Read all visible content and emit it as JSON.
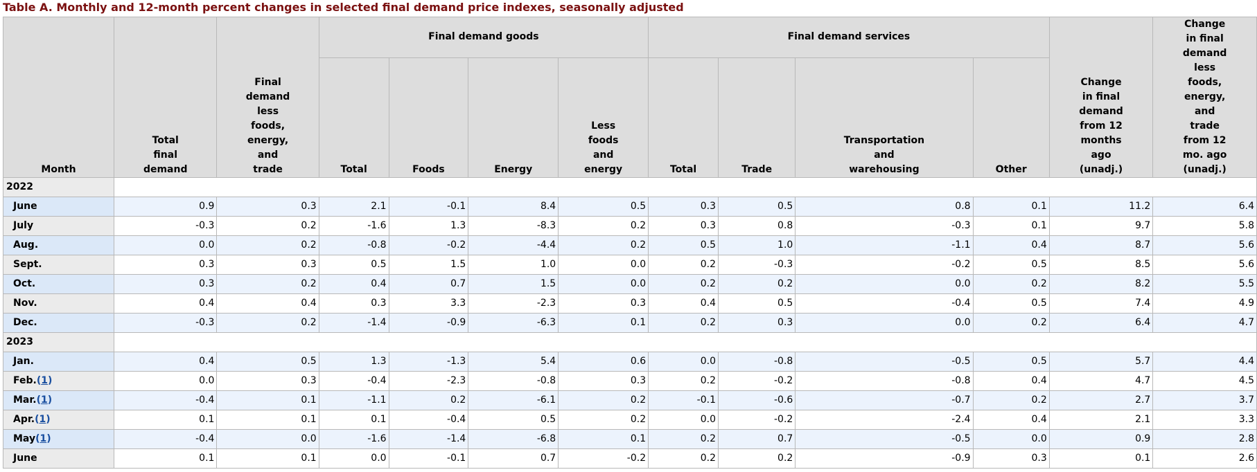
{
  "caption": "Table A. Monthly and 12-month percent changes in selected final demand price indexes, seasonally adjusted",
  "headers": {
    "month": "Month",
    "total_final_demand": "Total\nfinal\ndemand",
    "fd_less": "Final\ndemand\nless\nfoods,\nenergy,\nand\ntrade",
    "goods_group": "Final demand goods",
    "goods_total": "Total",
    "goods_foods": "Foods",
    "goods_energy": "Energy",
    "goods_less": "Less\nfoods\nand\nenergy",
    "services_group": "Final demand services",
    "services_total": "Total",
    "services_trade": "Trade",
    "services_transport": "Transportation\nand\nwarehousing",
    "services_other": "Other",
    "change_12": "Change\nin final\ndemand\nfrom 12\nmonths\nago\n(unadj.)",
    "change_12_less": "Change\nin final\ndemand\nless\nfoods,\nenergy,\nand\ntrade\nfrom 12\nmo. ago\n(unadj.)"
  },
  "years": [
    {
      "year": "2022",
      "rows": [
        {
          "month": "June",
          "fn": "",
          "values": [
            "0.9",
            "0.3",
            "2.1",
            "-0.1",
            "8.4",
            "0.5",
            "0.3",
            "0.5",
            "0.8",
            "0.1",
            "11.2",
            "6.4"
          ]
        },
        {
          "month": "July",
          "fn": "",
          "values": [
            "-0.3",
            "0.2",
            "-1.6",
            "1.3",
            "-8.3",
            "0.2",
            "0.3",
            "0.8",
            "-0.3",
            "0.1",
            "9.7",
            "5.8"
          ]
        },
        {
          "month": "Aug.",
          "fn": "",
          "values": [
            "0.0",
            "0.2",
            "-0.8",
            "-0.2",
            "-4.4",
            "0.2",
            "0.5",
            "1.0",
            "-1.1",
            "0.4",
            "8.7",
            "5.6"
          ]
        },
        {
          "month": "Sept.",
          "fn": "",
          "values": [
            "0.3",
            "0.3",
            "0.5",
            "1.5",
            "1.0",
            "0.0",
            "0.2",
            "-0.3",
            "-0.2",
            "0.5",
            "8.5",
            "5.6"
          ]
        },
        {
          "month": "Oct.",
          "fn": "",
          "values": [
            "0.3",
            "0.2",
            "0.4",
            "0.7",
            "1.5",
            "0.0",
            "0.2",
            "0.2",
            "0.0",
            "0.2",
            "8.2",
            "5.5"
          ]
        },
        {
          "month": "Nov.",
          "fn": "",
          "values": [
            "0.4",
            "0.4",
            "0.3",
            "3.3",
            "-2.3",
            "0.3",
            "0.4",
            "0.5",
            "-0.4",
            "0.5",
            "7.4",
            "4.9"
          ]
        },
        {
          "month": "Dec.",
          "fn": "",
          "values": [
            "-0.3",
            "0.2",
            "-1.4",
            "-0.9",
            "-6.3",
            "0.1",
            "0.2",
            "0.3",
            "0.0",
            "0.2",
            "6.4",
            "4.7"
          ]
        }
      ]
    },
    {
      "year": "2023",
      "rows": [
        {
          "month": "Jan.",
          "fn": "",
          "values": [
            "0.4",
            "0.5",
            "1.3",
            "-1.3",
            "5.4",
            "0.6",
            "0.0",
            "-0.8",
            "-0.5",
            "0.5",
            "5.7",
            "4.4"
          ]
        },
        {
          "month": "Feb.",
          "fn": "1",
          "values": [
            "0.0",
            "0.3",
            "-0.4",
            "-2.3",
            "-0.8",
            "0.3",
            "0.2",
            "-0.2",
            "-0.8",
            "0.4",
            "4.7",
            "4.5"
          ]
        },
        {
          "month": "Mar.",
          "fn": "1",
          "values": [
            "-0.4",
            "0.1",
            "-1.1",
            "0.2",
            "-6.1",
            "0.2",
            "-0.1",
            "-0.6",
            "-0.7",
            "0.2",
            "2.7",
            "3.7"
          ]
        },
        {
          "month": "Apr.",
          "fn": "1",
          "values": [
            "0.1",
            "0.1",
            "0.1",
            "-0.4",
            "0.5",
            "0.2",
            "0.0",
            "-0.2",
            "-2.4",
            "0.4",
            "2.1",
            "3.3"
          ]
        },
        {
          "month": "May",
          "fn": "1",
          "values": [
            "-0.4",
            "0.0",
            "-1.6",
            "-1.4",
            "-6.8",
            "0.1",
            "0.2",
            "0.7",
            "-0.5",
            "0.0",
            "0.9",
            "2.8"
          ]
        },
        {
          "month": "June",
          "fn": "",
          "values": [
            "0.1",
            "0.1",
            "0.0",
            "-0.1",
            "0.7",
            "-0.2",
            "0.2",
            "0.2",
            "-0.9",
            "0.3",
            "0.1",
            "2.6"
          ]
        }
      ]
    }
  ]
}
